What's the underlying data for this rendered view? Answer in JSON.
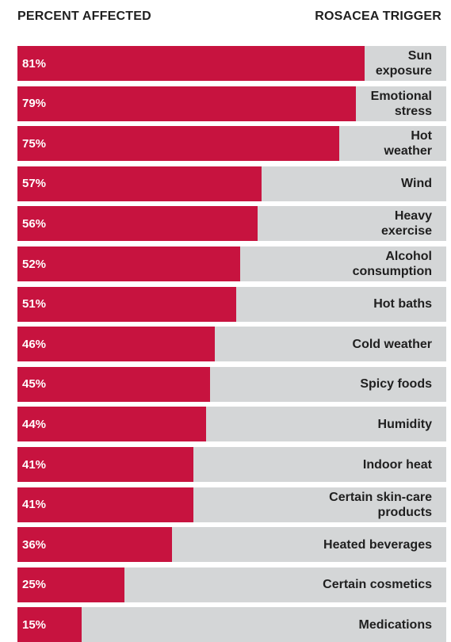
{
  "header": {
    "left_label": "PERCENT AFFECTED",
    "right_label": "ROSACEA TRIGGER"
  },
  "colors": {
    "bar": "#c7133f",
    "track": "#d4d6d7",
    "value_text": "#ffffff",
    "label_text": "#1f1f1f"
  },
  "chart_data": {
    "type": "bar",
    "orientation": "horizontal",
    "xlim": [
      0,
      100
    ],
    "grid": false,
    "legend": "none",
    "categories": [
      "Sun\nexposure",
      "Emotional\nstress",
      "Hot\nweather",
      "Wind",
      "Heavy\nexercise",
      "Alcohol\nconsumption",
      "Hot baths",
      "Cold weather",
      "Spicy foods",
      "Humidity",
      "Indoor heat",
      "Certain skin-care\nproducts",
      "Heated beverages",
      "Certain cosmetics",
      "Medications"
    ],
    "values": [
      81,
      79,
      75,
      57,
      56,
      52,
      51,
      46,
      45,
      44,
      41,
      41,
      36,
      25,
      15
    ],
    "value_labels": [
      "81%",
      "79%",
      "75%",
      "57%",
      "56%",
      "52%",
      "51%",
      "46%",
      "45%",
      "44%",
      "41%",
      "41%",
      "36%",
      "25%",
      "15%"
    ]
  }
}
